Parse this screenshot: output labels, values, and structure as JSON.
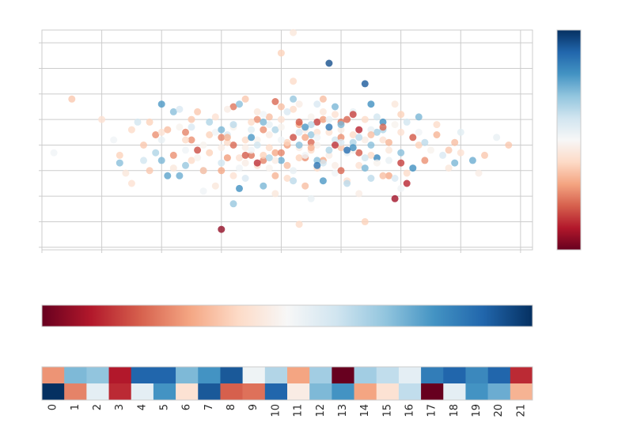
{
  "palette": [
    "#67001f",
    "#b2182b",
    "#d6604d",
    "#f4a582",
    "#fddbc7",
    "#f7f7f7",
    "#d1e5f0",
    "#92c5de",
    "#4393c3",
    "#2166ac",
    "#053061"
  ],
  "chart_data": [
    {
      "type": "scatter",
      "title": "",
      "xlabel": "",
      "ylabel": "",
      "grid": true,
      "colormap": "RdBu",
      "colorbar": "right",
      "xlim": [
        -4,
        4.2
      ],
      "ylim": [
        -4.1,
        4.5
      ],
      "xticks": [
        -4,
        -3,
        -2,
        -1,
        0,
        1,
        2,
        3,
        4
      ],
      "yticks": [
        -4,
        -3,
        -2,
        -1,
        0,
        1,
        2,
        3,
        4
      ],
      "clim": [
        -2.6,
        2.6
      ],
      "points": [
        [
          0.8,
          3.2,
          2.3
        ],
        [
          -1.0,
          -3.3,
          -2.3
        ],
        [
          1.9,
          -2.1,
          -2.2
        ],
        [
          0.2,
          1.8,
          1.0
        ],
        [
          -0.8,
          -2.3,
          1.0
        ],
        [
          1.1,
          1.0,
          -1.5
        ],
        [
          0.6,
          0.9,
          -1.8
        ],
        [
          -2.1,
          0.4,
          -1.2
        ],
        [
          -2.3,
          -0.6,
          0.5
        ],
        [
          -2.0,
          -0.6,
          1.2
        ],
        [
          -1.7,
          -1.2,
          1.3
        ],
        [
          -1.9,
          -1.2,
          1.4
        ],
        [
          -1.3,
          -1.0,
          0.3
        ],
        [
          -1.0,
          -1.0,
          -1.0
        ],
        [
          -0.5,
          0.6,
          0.3
        ],
        [
          -0.7,
          -1.7,
          1.6
        ],
        [
          1.5,
          -1.3,
          0.7
        ],
        [
          1.6,
          -0.5,
          1.7
        ],
        [
          3.2,
          -0.6,
          1.3
        ],
        [
          -0.8,
          1.5,
          -1.4
        ],
        [
          -1.8,
          -0.4,
          -1.2
        ],
        [
          -1.6,
          -0.8,
          1.0
        ],
        [
          -0.1,
          0.6,
          0.8
        ],
        [
          -0.3,
          -1.6,
          1.2
        ],
        [
          0.0,
          -0.6,
          1.3
        ],
        [
          1.2,
          0.1,
          0.8
        ],
        [
          0.9,
          0.2,
          0.5
        ],
        [
          0.5,
          0.4,
          1.0
        ],
        [
          1.6,
          0.5,
          0.9
        ],
        [
          0.1,
          0.0,
          -1.1
        ],
        [
          -0.3,
          -0.6,
          -1.3
        ],
        [
          -0.8,
          0.0,
          -1.5
        ],
        [
          0.4,
          -0.5,
          -1.2
        ],
        [
          0.7,
          -0.6,
          -1.0
        ],
        [
          1.0,
          0.9,
          -1.4
        ],
        [
          -1.0,
          0.3,
          -1.3
        ],
        [
          -1.5,
          0.2,
          -1.2
        ],
        [
          -1.6,
          0.5,
          -1.3
        ],
        [
          -0.1,
          -0.3,
          -1.0
        ],
        [
          1.3,
          -0.3,
          -1.6
        ],
        [
          2.4,
          -0.6,
          -1.2
        ],
        [
          0.4,
          0.3,
          -1.0
        ],
        [
          -0.3,
          0.6,
          -1.2
        ],
        [
          0.7,
          1.0,
          -1.1
        ],
        [
          0.2,
          0.3,
          -1.7
        ],
        [
          -0.5,
          -0.4,
          -1.4
        ],
        [
          0.0,
          -0.3,
          -1.3
        ],
        [
          -0.9,
          -0.5,
          -1.1
        ],
        [
          0.5,
          0.1,
          -1.5
        ],
        [
          1.8,
          -1.2,
          -1.0
        ],
        [
          2.1,
          -1.5,
          -2.0
        ],
        [
          -0.4,
          1.0,
          -1.2
        ],
        [
          -0.2,
          1.1,
          -0.8
        ],
        [
          0.3,
          0.8,
          -1.0
        ],
        [
          1.0,
          0.3,
          -1.2
        ],
        [
          2.0,
          1.2,
          -0.6
        ],
        [
          2.9,
          0.1,
          -0.8
        ],
        [
          3.4,
          -0.4,
          -0.7
        ],
        [
          3.8,
          0.0,
          -0.7
        ],
        [
          -3.5,
          1.8,
          -0.7
        ],
        [
          -1.5,
          1.0,
          -0.7
        ],
        [
          -2.2,
          0.9,
          -0.6
        ],
        [
          -2.7,
          -0.4,
          -0.6
        ],
        [
          -2.3,
          0.0,
          -0.7
        ],
        [
          -2.5,
          0.6,
          -0.5
        ],
        [
          0.0,
          3.6,
          -0.6
        ],
        [
          0.2,
          4.4,
          -0.3
        ],
        [
          0.3,
          -3.1,
          -0.5
        ],
        [
          1.4,
          -3.0,
          -0.6
        ],
        [
          0.2,
          2.5,
          -0.5
        ],
        [
          0.1,
          0.1,
          -0.6
        ],
        [
          0.6,
          0.5,
          -0.4
        ],
        [
          -0.2,
          -0.1,
          -0.5
        ],
        [
          1.0,
          -0.1,
          -0.7
        ],
        [
          1.2,
          0.4,
          -0.5
        ],
        [
          0.8,
          0.5,
          -0.4
        ],
        [
          -0.6,
          0.2,
          -0.5
        ],
        [
          -0.3,
          -0.4,
          -0.6
        ],
        [
          0.5,
          -0.2,
          -0.5
        ],
        [
          1.7,
          0.2,
          -0.4
        ],
        [
          -1.2,
          0.4,
          -0.6
        ],
        [
          -0.9,
          0.1,
          -0.5
        ],
        [
          -1.2,
          -0.3,
          -0.6
        ],
        [
          -0.7,
          -0.5,
          -0.4
        ],
        [
          0.3,
          -0.5,
          -0.6
        ],
        [
          1.5,
          -0.4,
          -0.5
        ],
        [
          2.0,
          0.5,
          -0.4
        ],
        [
          2.3,
          0.0,
          -0.6
        ],
        [
          1.8,
          -0.2,
          -0.3
        ],
        [
          -1.6,
          0.2,
          -0.5
        ],
        [
          -2.0,
          0.5,
          -0.4
        ],
        [
          -1.5,
          -0.6,
          -0.5
        ],
        [
          -0.4,
          -0.8,
          -0.4
        ],
        [
          0.6,
          -0.9,
          -0.5
        ],
        [
          1.3,
          -0.8,
          -0.4
        ],
        [
          0.0,
          1.0,
          -0.4
        ],
        [
          -0.5,
          0.9,
          -0.5
        ],
        [
          0.9,
          1.2,
          -0.4
        ],
        [
          1.4,
          1.0,
          -0.5
        ],
        [
          0.2,
          1.4,
          -0.5
        ],
        [
          0.7,
          1.3,
          -0.3
        ],
        [
          -1.1,
          1.1,
          -0.4
        ],
        [
          2.6,
          0.8,
          -0.5
        ],
        [
          3.0,
          -0.3,
          -0.4
        ],
        [
          1.9,
          1.6,
          -0.3
        ],
        [
          -0.4,
          1.3,
          -0.3
        ],
        [
          -0.8,
          -1.2,
          -0.4
        ],
        [
          0.1,
          -1.3,
          -0.5
        ],
        [
          1.1,
          -1.4,
          -0.4
        ],
        [
          2.1,
          -1.1,
          -0.5
        ],
        [
          -1.8,
          -0.9,
          -0.3
        ],
        [
          -0.2,
          0.4,
          -0.2
        ],
        [
          0.4,
          0.6,
          -0.2
        ],
        [
          1.0,
          0.6,
          -0.2
        ],
        [
          -0.6,
          -0.1,
          -0.2
        ],
        [
          0.3,
          -0.1,
          -0.2
        ],
        [
          0.8,
          -0.4,
          -0.2
        ],
        [
          1.4,
          0.2,
          -0.2
        ],
        [
          -1.0,
          -0.1,
          -0.2
        ],
        [
          -0.1,
          -0.6,
          -0.2
        ],
        [
          0.6,
          0.0,
          -0.1
        ],
        [
          1.2,
          -0.2,
          -0.1
        ],
        [
          -0.4,
          0.2,
          -0.1
        ],
        [
          0.0,
          0.7,
          -0.1
        ],
        [
          0.5,
          1.1,
          -0.1
        ],
        [
          -0.8,
          0.7,
          -0.1
        ],
        [
          1.6,
          -0.7,
          -0.1
        ],
        [
          -1.3,
          0.0,
          -0.1
        ],
        [
          2.2,
          0.3,
          -0.1
        ],
        [
          -0.6,
          -0.7,
          -0.2
        ],
        [
          1.9,
          0.8,
          -0.1
        ],
        [
          -1.4,
          -0.5,
          -0.1
        ],
        [
          0.9,
          -0.8,
          -0.2
        ],
        [
          -0.2,
          -0.9,
          -0.1
        ],
        [
          0.3,
          1.6,
          -0.2
        ],
        [
          -0.9,
          1.4,
          -0.2
        ],
        [
          2.5,
          -0.2,
          -0.1
        ],
        [
          -1.7,
          0.7,
          -0.1
        ],
        [
          -2.5,
          -1.5,
          -0.4
        ],
        [
          -2.6,
          -1.1,
          -0.3
        ],
        [
          -1.1,
          -1.6,
          -0.3
        ],
        [
          -0.1,
          -1.9,
          -0.3
        ],
        [
          1.3,
          -1.9,
          -0.2
        ],
        [
          2.8,
          -0.9,
          -0.3
        ],
        [
          0.0,
          0.2,
          0.1
        ],
        [
          0.6,
          0.3,
          0.1
        ],
        [
          -0.5,
          -0.2,
          0.1
        ],
        [
          1.1,
          -0.3,
          0.2
        ],
        [
          -0.2,
          0.8,
          0.2
        ],
        [
          0.4,
          -0.4,
          0.1
        ],
        [
          1.5,
          0.6,
          0.2
        ],
        [
          -1.1,
          0.5,
          0.1
        ],
        [
          0.8,
          1.0,
          0.2
        ],
        [
          -0.7,
          -0.9,
          0.1
        ],
        [
          1.8,
          -0.6,
          0.2
        ],
        [
          -1.6,
          -0.2,
          0.1
        ],
        [
          0.2,
          -1.0,
          0.2
        ],
        [
          2.3,
          0.5,
          0.1
        ],
        [
          -2.0,
          0.2,
          0.2
        ],
        [
          0.9,
          -1.1,
          0.1
        ],
        [
          -0.3,
          1.2,
          0.1
        ],
        [
          1.2,
          1.3,
          0.2
        ],
        [
          3.6,
          0.3,
          0.2
        ],
        [
          -2.8,
          0.2,
          0.1
        ],
        [
          -3.8,
          -0.3,
          0.1
        ],
        [
          2.0,
          -1.7,
          0.1
        ],
        [
          0.5,
          -2.1,
          0.2
        ],
        [
          -1.3,
          -1.8,
          0.1
        ],
        [
          0.3,
          0.5,
          0.4
        ],
        [
          -0.4,
          0.0,
          0.5
        ],
        [
          1.0,
          0.1,
          0.4
        ],
        [
          0.7,
          -0.7,
          0.5
        ],
        [
          -0.9,
          0.4,
          0.4
        ],
        [
          1.4,
          -0.5,
          0.5
        ],
        [
          0.1,
          1.3,
          0.4
        ],
        [
          -1.5,
          0.7,
          0.4
        ],
        [
          2.1,
          0.9,
          0.5
        ],
        [
          -0.6,
          -1.3,
          0.4
        ],
        [
          1.6,
          1.1,
          0.5
        ],
        [
          0.6,
          1.6,
          0.4
        ],
        [
          -1.0,
          -0.7,
          0.5
        ],
        [
          2.7,
          -0.4,
          0.4
        ],
        [
          -2.4,
          0.9,
          0.5
        ],
        [
          1.9,
          -1.3,
          0.4
        ],
        [
          0.5,
          0.8,
          0.7
        ],
        [
          -0.2,
          -0.5,
          0.8
        ],
        [
          1.3,
          0.3,
          0.7
        ],
        [
          0.8,
          -0.2,
          0.8
        ],
        [
          -0.8,
          0.8,
          0.7
        ],
        [
          1.7,
          0.6,
          0.8
        ],
        [
          0.2,
          -1.4,
          0.7
        ],
        [
          -1.2,
          0.9,
          0.8
        ],
        [
          2.4,
          0.1,
          0.7
        ],
        [
          -2.1,
          -0.3,
          0.8
        ],
        [
          1.1,
          -1.5,
          0.7
        ],
        [
          0.3,
          0.0,
          1.1
        ],
        [
          1.0,
          0.8,
          1.2
        ],
        [
          0.6,
          -0.6,
          1.1
        ],
        [
          -0.3,
          0.9,
          1.2
        ],
        [
          1.5,
          0.0,
          1.1
        ],
        [
          -1.0,
          0.6,
          1.2
        ],
        [
          2.0,
          -0.3,
          1.1
        ],
        [
          0.9,
          1.5,
          1.2
        ],
        [
          -1.8,
          1.3,
          1.1
        ],
        [
          1.4,
          -0.9,
          1.2
        ],
        [
          -0.7,
          1.6,
          1.1
        ],
        [
          2.3,
          1.1,
          1.2
        ],
        [
          -2.7,
          -0.7,
          1.1
        ],
        [
          2.9,
          -0.7,
          1.2
        ],
        [
          1.2,
          -0.1,
          1.6
        ],
        [
          0.4,
          0.7,
          1.5
        ],
        [
          1.7,
          0.9,
          1.6
        ],
        [
          -0.5,
          0.3,
          1.5
        ],
        [
          2.2,
          -0.9,
          1.6
        ],
        [
          0.7,
          -1.4,
          1.5
        ],
        [
          1.5,
          1.6,
          1.6
        ],
        [
          -2.0,
          1.6,
          1.5
        ],
        [
          1.1,
          -0.2,
          2.0
        ],
        [
          1.4,
          2.4,
          2.2
        ],
        [
          0.8,
          0.7,
          1.9
        ],
        [
          0.6,
          -0.8,
          1.9
        ],
        [
          -0.6,
          -0.4,
          -1.6
        ],
        [
          0.3,
          0.9,
          -1.6
        ],
        [
          1.7,
          0.7,
          -1.5
        ],
        [
          -1.4,
          -0.2,
          -1.7
        ],
        [
          1.0,
          -1.0,
          -1.5
        ],
        [
          2.2,
          0.3,
          -1.6
        ],
        [
          -0.1,
          1.7,
          -1.5
        ],
        [
          2.0,
          -0.7,
          -1.8
        ],
        [
          1.2,
          1.2,
          -1.8
        ],
        [
          1.3,
          0.6,
          -2.0
        ],
        [
          0.9,
          0.0,
          -1.9
        ],
        [
          -0.4,
          -0.7,
          -1.9
        ],
        [
          -3.0,
          1.0,
          -0.4
        ],
        [
          3.3,
          -1.1,
          -0.2
        ],
        [
          -1.7,
          1.4,
          0.4
        ],
        [
          3.0,
          0.5,
          0.3
        ],
        [
          0.5,
          -0.1,
          -0.9
        ],
        [
          1.5,
          0.4,
          -0.8
        ],
        [
          -0.9,
          0.3,
          -0.9
        ],
        [
          0.1,
          -0.8,
          -0.8
        ],
        [
          -1.9,
          0.6,
          -0.8
        ],
        [
          1.8,
          0.1,
          -0.9
        ],
        [
          0.7,
          1.8,
          -0.8
        ],
        [
          -0.1,
          -1.2,
          -0.9
        ],
        [
          -1.3,
          -1.0,
          -0.8
        ],
        [
          2.6,
          0.4,
          -0.9
        ],
        [
          0.0,
          1.5,
          -0.8
        ],
        [
          -0.6,
          1.8,
          -0.7
        ],
        [
          0.4,
          -1.6,
          -0.8
        ],
        [
          -2.2,
          -1.0,
          -0.7
        ],
        [
          1.7,
          -1.2,
          -0.8
        ],
        [
          -1.4,
          1.3,
          -0.7
        ],
        [
          2.8,
          -0.2,
          -0.7
        ]
      ]
    },
    {
      "type": "colorbar",
      "orientation": "horizontal",
      "colormap": "RdBu",
      "title": ""
    },
    {
      "type": "heatmap",
      "title": "",
      "colormap": "RdBu",
      "categories": [
        "0",
        "1",
        "2",
        "3",
        "4",
        "5",
        "6",
        "7",
        "8",
        "9",
        "10",
        "11",
        "12",
        "13",
        "14",
        "15",
        "16",
        "17",
        "18",
        "19",
        "20",
        "21"
      ],
      "clim": [
        -1,
        1
      ],
      "rows": [
        [
          -0.45,
          0.45,
          0.4,
          -0.8,
          0.8,
          0.8,
          0.45,
          0.6,
          0.85,
          0.05,
          0.3,
          -0.4,
          0.35,
          -1.0,
          0.35,
          0.25,
          0.1,
          0.7,
          0.8,
          0.65,
          0.8,
          -0.75
        ],
        [
          1.0,
          -0.5,
          0.1,
          -0.75,
          0.1,
          0.6,
          -0.15,
          0.85,
          -0.6,
          -0.55,
          0.8,
          -0.08,
          0.45,
          0.6,
          -0.4,
          -0.15,
          0.25,
          -1.0,
          0.1,
          0.6,
          0.5,
          -0.35
        ]
      ]
    }
  ]
}
